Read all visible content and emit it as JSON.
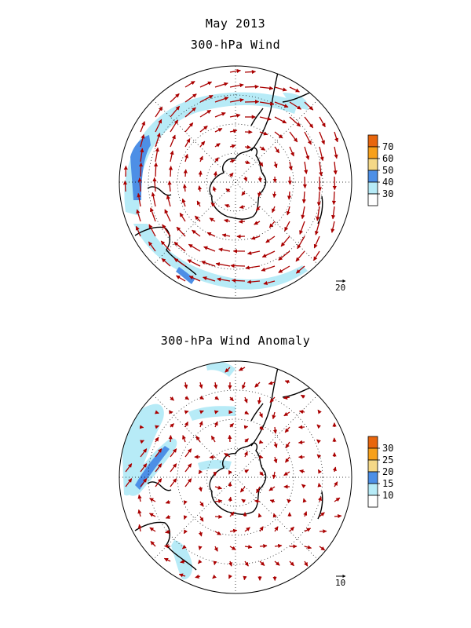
{
  "title": "May 2013",
  "panels": [
    {
      "title": "300-hPa Wind",
      "reference_vector": {
        "label": "20"
      },
      "colorbar": {
        "ticks": [
          "70",
          "60",
          "50",
          "40",
          "30"
        ],
        "colors": [
          "#e8660d",
          "#f7a01a",
          "#f5d887",
          "#4d8fe6",
          "#b7ebf7",
          "#ffffff"
        ]
      }
    },
    {
      "title": "300-hPa Wind Anomaly",
      "reference_vector": {
        "label": "10"
      },
      "colorbar": {
        "ticks": [
          "30",
          "25",
          "20",
          "15",
          "10"
        ],
        "colors": [
          "#e8660d",
          "#f7a01a",
          "#f5d887",
          "#4d8fe6",
          "#b7ebf7",
          "#ffffff"
        ]
      }
    }
  ],
  "colors": {
    "vector": "#aa0000",
    "coast": "#000000",
    "shade_light": "#b7ebf7",
    "shade_dark": "#4d8fe6"
  }
}
